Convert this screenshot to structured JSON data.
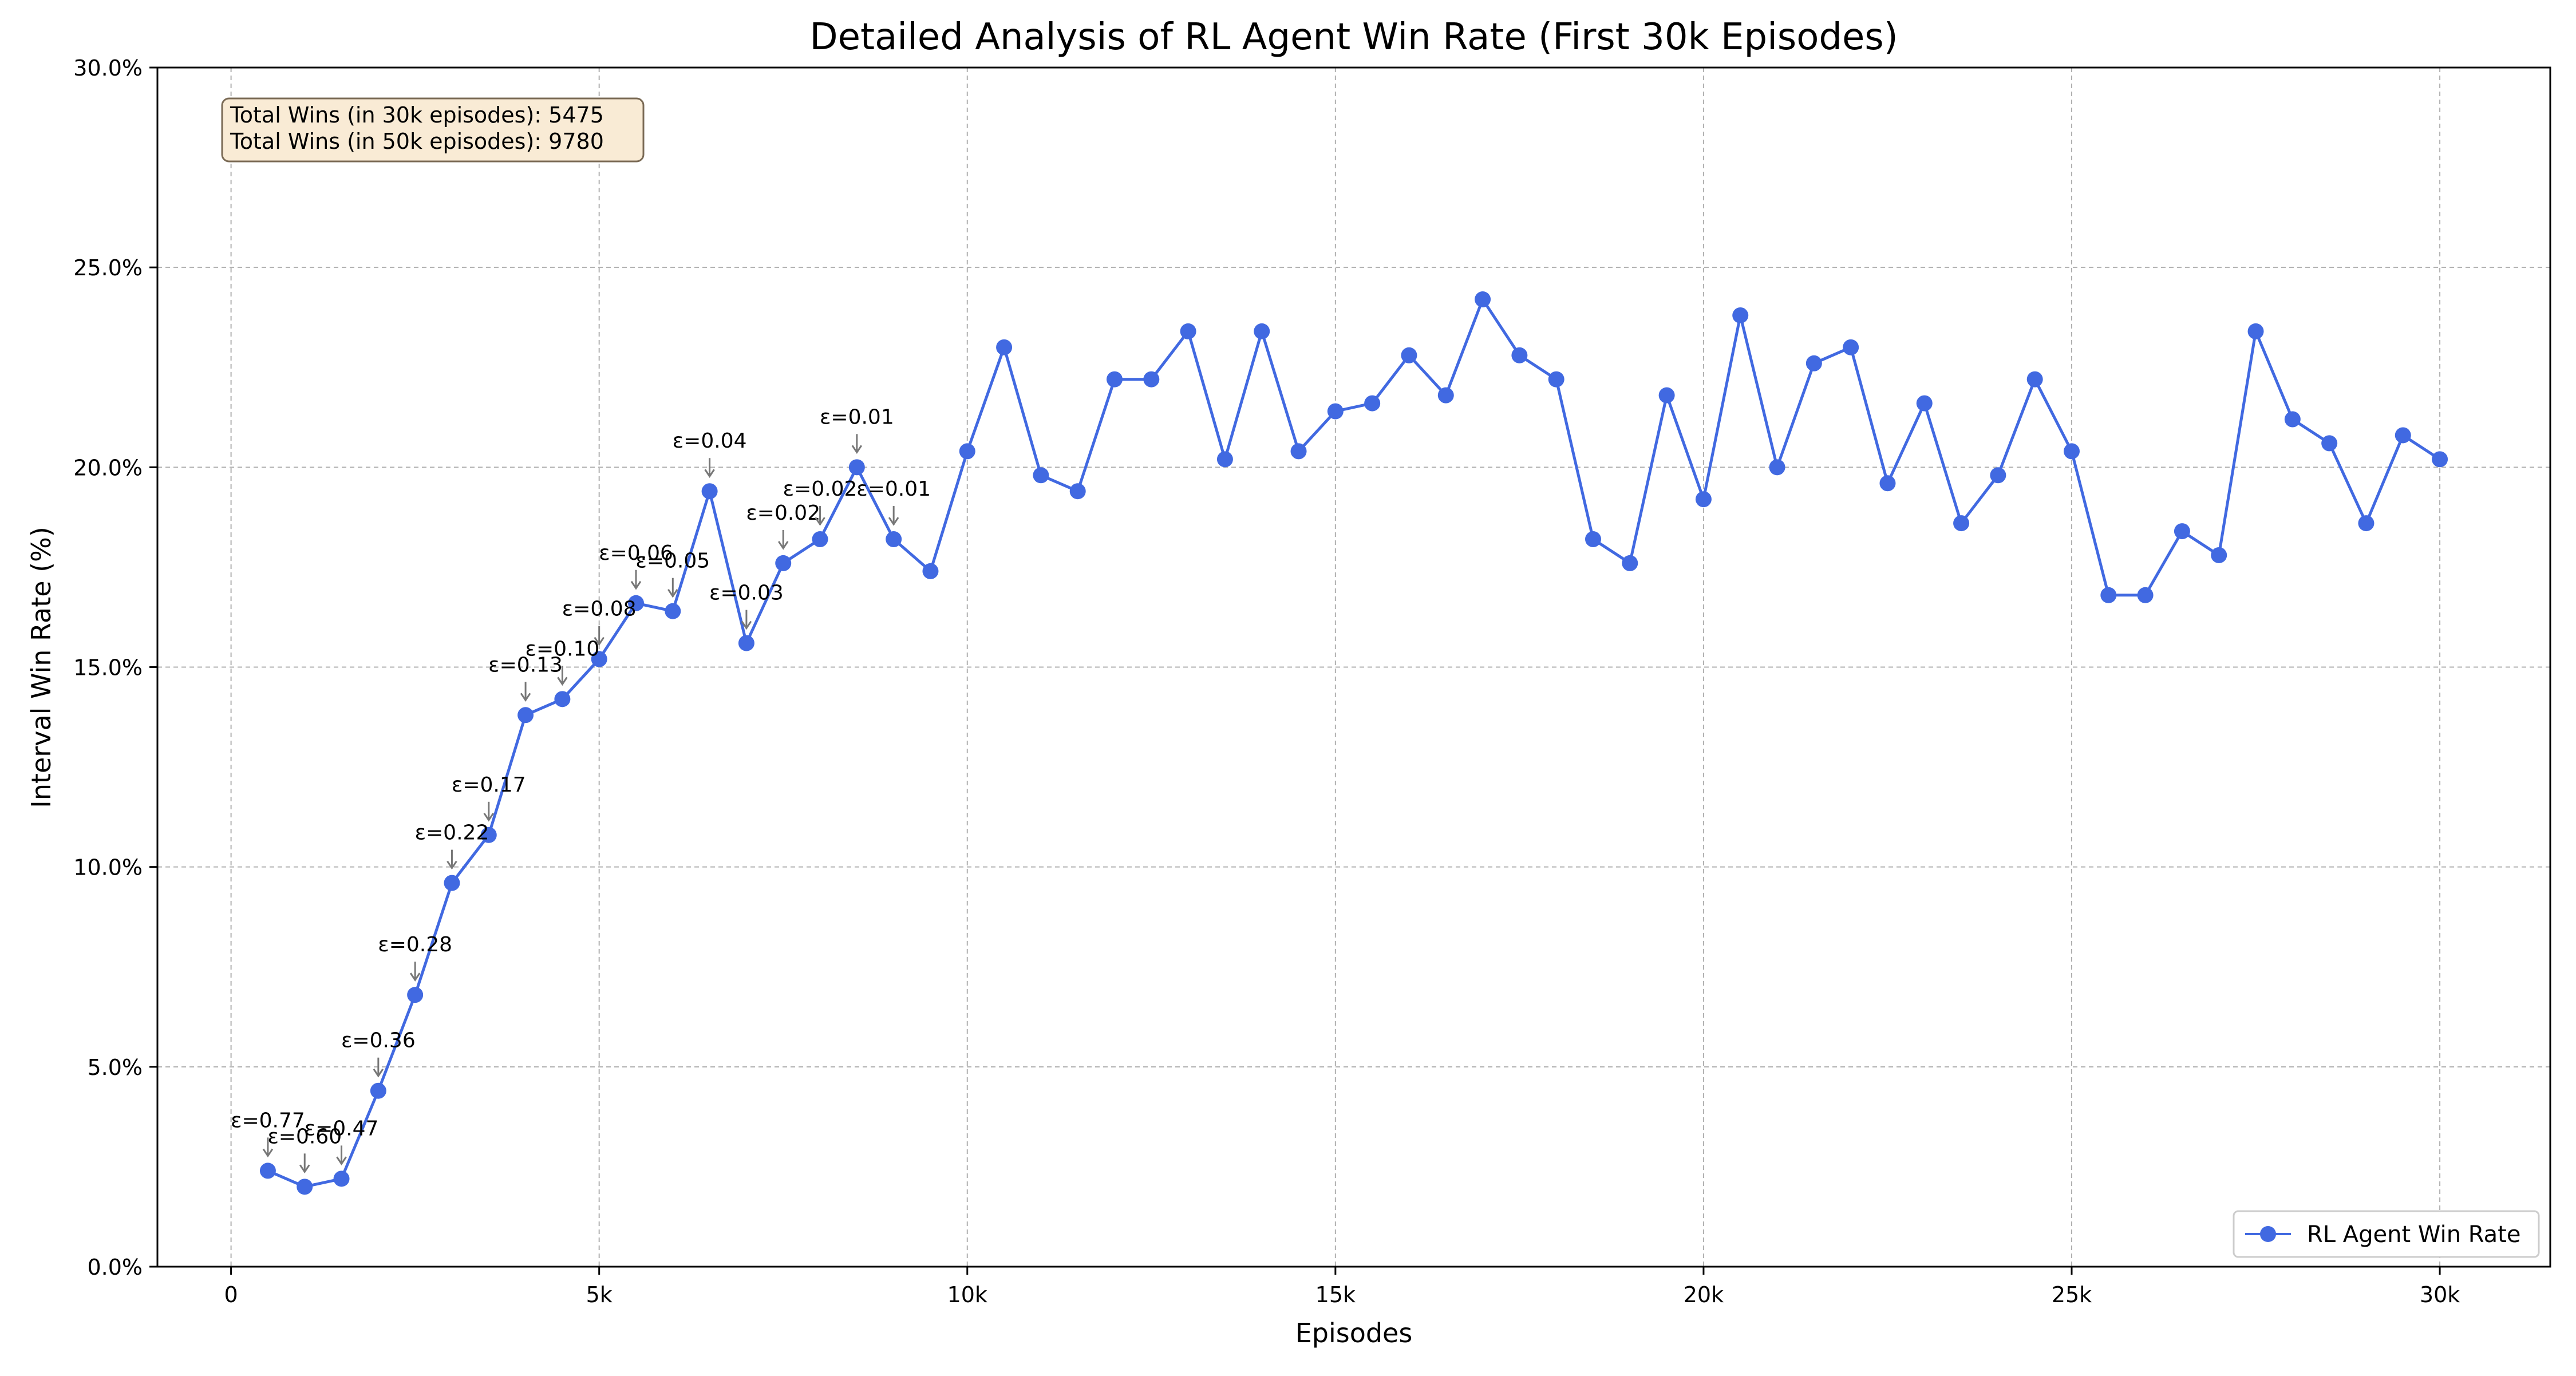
{
  "chart_data": {
    "type": "line",
    "title": "Detailed Analysis of RL Agent Win Rate (First 30k Episodes)",
    "xlabel": "Episodes",
    "ylabel": "Interval Win Rate (%)",
    "xlim": [
      -1000,
      31500
    ],
    "ylim": [
      0,
      30
    ],
    "xticks": [
      0,
      5000,
      10000,
      15000,
      20000,
      25000,
      30000
    ],
    "xtick_labels": [
      "0",
      "5k",
      "10k",
      "15k",
      "20k",
      "25k",
      "30k"
    ],
    "yticks": [
      0,
      5,
      10,
      15,
      20,
      25,
      30
    ],
    "ytick_labels": [
      "0.0%",
      "5.0%",
      "10.0%",
      "15.0%",
      "20.0%",
      "25.0%",
      "30.0%"
    ],
    "grid": true,
    "legend_position": "lower-right",
    "series": [
      {
        "name": "RL Agent Win Rate",
        "color": "#4169e1",
        "x": [
          500,
          1000,
          1500,
          2000,
          2500,
          3000,
          3500,
          4000,
          4500,
          5000,
          5500,
          6000,
          6500,
          7000,
          7500,
          8000,
          8500,
          9000,
          9500,
          10000,
          10500,
          11000,
          11500,
          12000,
          12500,
          13000,
          13500,
          14000,
          14500,
          15000,
          15500,
          16000,
          16500,
          17000,
          17500,
          18000,
          18500,
          19000,
          19500,
          20000,
          20500,
          21000,
          21500,
          22000,
          22500,
          23000,
          23500,
          24000,
          24500,
          25000,
          25500,
          26000,
          26500,
          27000,
          27500,
          28000,
          28500,
          29000,
          29500,
          30000
        ],
        "values": [
          2.4,
          2.0,
          2.2,
          4.4,
          6.8,
          9.6,
          10.8,
          13.8,
          14.2,
          15.2,
          16.6,
          16.4,
          19.4,
          15.6,
          17.6,
          18.2,
          20.0,
          18.2,
          17.4,
          20.4,
          23.0,
          19.8,
          19.4,
          22.2,
          22.2,
          23.4,
          20.2,
          23.4,
          20.4,
          21.4,
          21.6,
          22.8,
          21.8,
          24.2,
          22.8,
          22.2,
          18.2,
          17.6,
          21.8,
          19.2,
          23.8,
          20.0,
          22.6,
          23.0,
          19.6,
          21.6,
          18.6,
          19.8,
          22.2,
          20.4,
          16.8,
          16.8,
          18.4,
          17.8,
          23.4,
          21.2,
          20.6,
          18.6,
          20.8,
          20.2
        ]
      }
    ],
    "annotations": [
      {
        "x": 500,
        "y": 2.4,
        "text": "ε=0.77"
      },
      {
        "x": 1000,
        "y": 2.0,
        "text": "ε=0.60"
      },
      {
        "x": 1500,
        "y": 2.2,
        "text": "ε=0.47"
      },
      {
        "x": 2000,
        "y": 4.4,
        "text": "ε=0.36"
      },
      {
        "x": 2500,
        "y": 6.8,
        "text": "ε=0.28"
      },
      {
        "x": 3000,
        "y": 9.6,
        "text": "ε=0.22"
      },
      {
        "x": 3500,
        "y": 10.8,
        "text": "ε=0.17"
      },
      {
        "x": 4000,
        "y": 13.8,
        "text": "ε=0.13"
      },
      {
        "x": 4500,
        "y": 14.2,
        "text": "ε=0.10"
      },
      {
        "x": 5000,
        "y": 15.2,
        "text": "ε=0.08"
      },
      {
        "x": 5500,
        "y": 16.6,
        "text": "ε=0.06"
      },
      {
        "x": 6000,
        "y": 16.4,
        "text": "ε=0.05"
      },
      {
        "x": 6500,
        "y": 19.4,
        "text": "ε=0.04"
      },
      {
        "x": 7000,
        "y": 15.6,
        "text": "ε=0.03"
      },
      {
        "x": 7500,
        "y": 17.6,
        "text": "ε=0.02"
      },
      {
        "x": 8000,
        "y": 18.2,
        "text": "ε=0.02"
      },
      {
        "x": 8500,
        "y": 20.0,
        "text": "ε=0.01"
      },
      {
        "x": 9000,
        "y": 18.2,
        "text": "ε=0.01"
      }
    ],
    "info_box": {
      "lines": [
        "Total Wins (in 30k episodes): 5475",
        "Total Wins (in 50k episodes): 9780"
      ],
      "background": "#f9ebd5",
      "border": "#7a6a55"
    }
  }
}
